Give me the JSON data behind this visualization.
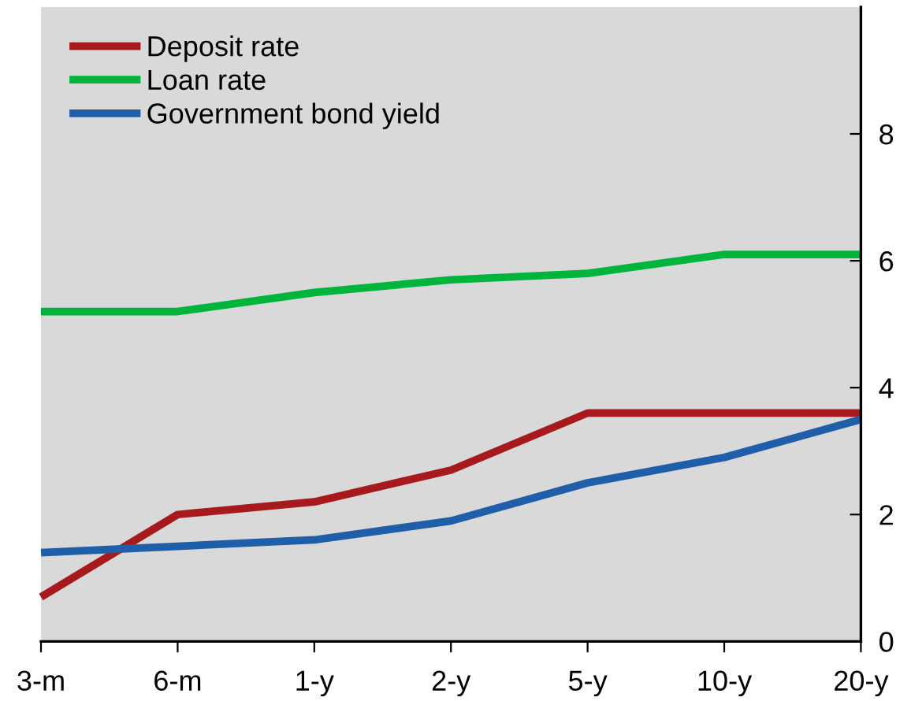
{
  "chart_data": {
    "type": "line",
    "categories": [
      "3-m",
      "6-m",
      "1-y",
      "2-y",
      "5-y",
      "10-y",
      "20-y"
    ],
    "series": [
      {
        "name": "Deposit rate",
        "color": "#a6191c",
        "values": [
          0.7,
          2.0,
          2.2,
          2.7,
          3.6,
          3.6,
          3.6
        ]
      },
      {
        "name": "Loan rate",
        "color": "#00b43c",
        "values": [
          5.2,
          5.2,
          5.5,
          5.7,
          5.8,
          6.1,
          6.1
        ]
      },
      {
        "name": "Government bond yield",
        "color": "#1f5ea8",
        "values": [
          1.4,
          1.5,
          1.6,
          1.9,
          2.5,
          2.9,
          3.5
        ]
      }
    ],
    "ylim": [
      0,
      10
    ],
    "yticks": [
      0,
      2,
      4,
      6,
      8
    ],
    "grid": false,
    "legend": "top left",
    "marker": "none",
    "line_style": "solid"
  }
}
